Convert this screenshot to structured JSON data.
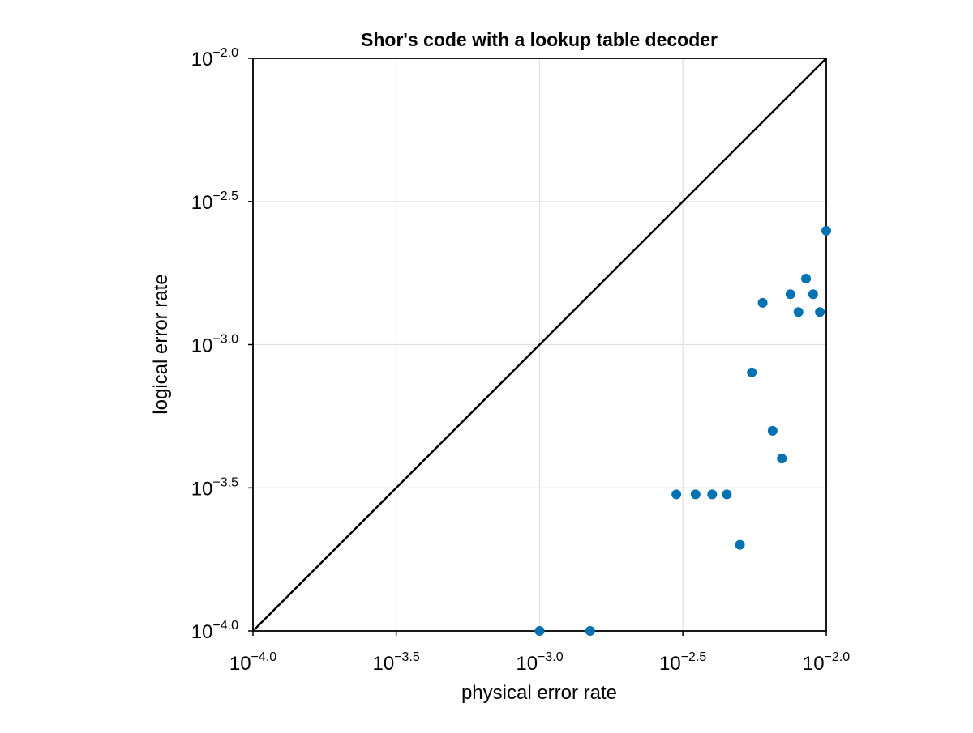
{
  "chart_data": {
    "type": "scatter",
    "title": "Shor's code with a lookup table decoder",
    "x_label": "physical error rate",
    "y_label": "logical error rate",
    "log_x": true,
    "log_y": true,
    "grid": true,
    "xlim": [
      0.0001,
      0.01
    ],
    "ylim": [
      0.0001,
      0.01
    ],
    "xticks": [
      {
        "value": 0.0001,
        "label": "10−4.0"
      },
      {
        "value": 0.000316,
        "label": "10−3.5"
      },
      {
        "value": 0.001,
        "label": "10−3.0"
      },
      {
        "value": 0.00316,
        "label": "10−2.5"
      },
      {
        "value": 0.01,
        "label": "10−2.0"
      }
    ],
    "yticks": [
      {
        "value": 0.0001,
        "label": "10−4.0"
      },
      {
        "value": 0.000316,
        "label": "10−3.5"
      },
      {
        "value": 0.001,
        "label": "10−3.0"
      },
      {
        "value": 0.00316,
        "label": "10−2.5"
      },
      {
        "value": 0.01,
        "label": "10−2.0"
      }
    ],
    "series": [
      {
        "color": "#0072b2",
        "x": [
          0.001,
          0.0015,
          0.003,
          0.0035,
          0.004,
          0.0045,
          0.005,
          0.0055,
          0.006,
          0.0065,
          0.007,
          0.0075,
          0.008,
          0.0085,
          0.009,
          0.0095,
          0.01
        ],
        "values": [
          0.0001,
          0.0001,
          0.0003,
          0.0003,
          0.0003,
          0.0003,
          0.0002,
          0.0008,
          0.0014,
          0.0005,
          0.0004,
          0.0015,
          0.0013,
          0.0017,
          0.0015,
          0.0013,
          0.0025
        ]
      }
    ],
    "reference_line": {
      "color": "#000000",
      "x": [
        0.0001,
        0.01
      ],
      "y": [
        0.0001,
        0.01
      ]
    }
  }
}
